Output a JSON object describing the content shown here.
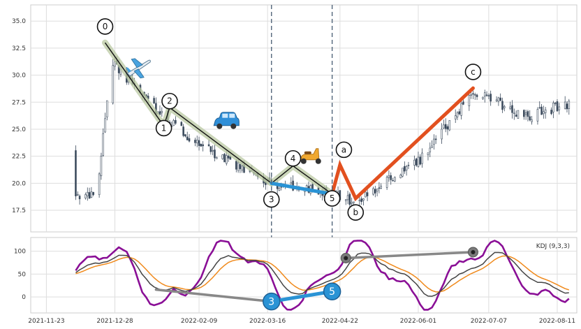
{
  "chart_data": [
    {
      "type": "candlestick",
      "panel": "price",
      "title": "",
      "ylim": [
        15.5,
        36.5
      ],
      "yticks": [
        17.5,
        20.0,
        22.5,
        25.0,
        27.5,
        30.0,
        32.5,
        35.0
      ],
      "ytick_labels": [
        "17.5",
        "20.0",
        "22.5",
        "25.0",
        "27.5",
        "30.0",
        "32.5",
        "35.0"
      ],
      "xlim": [
        "2021-11-15",
        "2022-08-21"
      ],
      "grid": true,
      "colors": {
        "up": "#ffffff",
        "down": "#3b4a5c",
        "wick": "#3b4a5c"
      },
      "key_points": [
        {
          "x": "2021-12-19",
          "y": 18.8
        },
        {
          "x": "2021-12-26",
          "y": 31.5
        },
        {
          "x": "2022-01-21",
          "y": 26.2
        },
        {
          "x": "2022-02-11",
          "y": 23.4
        },
        {
          "x": "2022-03-18",
          "y": 20.0
        },
        {
          "x": "2022-04-18",
          "y": 19.0
        },
        {
          "x": "2022-04-30",
          "y": 18.3
        },
        {
          "x": "2022-06-01",
          "y": 22.0
        },
        {
          "x": "2022-06-29",
          "y": 28.4
        },
        {
          "x": "2022-07-27",
          "y": 26.2
        },
        {
          "x": "2022-08-16",
          "y": 27.3
        }
      ],
      "impulse_wave": {
        "color": "#111111",
        "shade_color": "#b9c8a2",
        "points": [
          {
            "label": "0",
            "x": "2021-12-23",
            "y": 33.0
          },
          {
            "label": "1",
            "x": "2022-01-22",
            "y": 25.3
          },
          {
            "label": "2",
            "x": "2022-01-25",
            "y": 27.0
          },
          {
            "label": "3",
            "x": "2022-03-18",
            "y": 20.0
          },
          {
            "label": "4",
            "x": "2022-03-29",
            "y": 21.6
          },
          {
            "label": "5",
            "x": "2022-04-18",
            "y": 19.0
          }
        ]
      },
      "wave_3_5_segment": {
        "color": "#2a93d5",
        "points": [
          {
            "x": "2022-03-18",
            "y": 20.0
          },
          {
            "x": "2022-04-18",
            "y": 19.0
          }
        ]
      },
      "correction_wave": {
        "color": "#e2501f",
        "points": [
          {
            "label": "",
            "x": "2022-04-18",
            "y": 19.0
          },
          {
            "label": "a",
            "x": "2022-04-22",
            "y": 21.7
          },
          {
            "label": "b",
            "x": "2022-04-30",
            "y": 18.6
          },
          {
            "label": "c",
            "x": "2022-06-29",
            "y": 28.8
          }
        ]
      },
      "wave_label_positions": [
        {
          "label": "0",
          "x": "2021-12-23",
          "y": 34.5
        },
        {
          "label": "1",
          "x": "2022-01-22",
          "y": 25.1
        },
        {
          "label": "2",
          "x": "2022-01-25",
          "y": 27.6
        },
        {
          "label": "3",
          "x": "2022-03-18",
          "y": 18.5
        },
        {
          "label": "4",
          "x": "2022-03-29",
          "y": 22.3
        },
        {
          "label": "5",
          "x": "2022-04-18",
          "y": 18.6
        },
        {
          "label": "a",
          "x": "2022-04-24",
          "y": 23.1
        },
        {
          "label": "b",
          "x": "2022-04-30",
          "y": 17.3
        },
        {
          "label": "c",
          "x": "2022-06-29",
          "y": 30.3
        }
      ],
      "vertical_lines": [
        {
          "x": "2022-03-18",
          "color": "#51657a",
          "style": "dashed"
        },
        {
          "x": "2022-04-18",
          "color": "#51657a",
          "style": "dashed"
        }
      ],
      "emoji_annotations": [
        {
          "icon": "airplane-icon",
          "glyph": "✈",
          "x": "2022-01-09",
          "y": 30.7
        },
        {
          "icon": "car-icon",
          "glyph": "🚙",
          "x": "2022-02-23",
          "y": 25.6
        },
        {
          "icon": "scooter-icon",
          "glyph": "🛵",
          "x": "2022-04-07",
          "y": 22.3
        }
      ]
    },
    {
      "type": "line",
      "panel": "indicator",
      "ylim": [
        -35,
        130
      ],
      "yticks": [
        0,
        50,
        100
      ],
      "ytick_labels": [
        "0",
        "50",
        "100"
      ],
      "legend": {
        "text": "KDJ (9,3,3)",
        "position": "top-right"
      },
      "xticks": [
        "2021-11-23",
        "2021-12-28",
        "2022-02-09",
        "2022-03-16",
        "2022-04-22",
        "2022-06-01",
        "2022-07-07",
        "2022-08-11"
      ],
      "xtick_labels": [
        "2021-11-23",
        "2021-12-28",
        "2022-02-09",
        "2022-03-16",
        "2022-04-22",
        "2022-06-01",
        "2022-07-07",
        "2022-08-11"
      ],
      "grid": true,
      "series": [
        {
          "key": "K",
          "color": "#444444"
        },
        {
          "key": "D",
          "color": "#f08a1c"
        },
        {
          "key": "J",
          "color": "#8a0f96"
        }
      ],
      "divergence_lines": [
        {
          "color": "#888888",
          "points": [
            {
              "x": "2022-01-18",
              "y": 16
            },
            {
              "x": "2022-03-18",
              "y": -10
            }
          ]
        },
        {
          "color": "#888888",
          "marker_color": "#7a7a7a",
          "points": [
            {
              "x": "2022-04-25",
              "y": 85
            },
            {
              "x": "2022-06-29",
              "y": 98
            }
          ]
        },
        {
          "color": "#2a93d5",
          "points": [
            {
              "x": "2022-03-18",
              "y": -10
            },
            {
              "x": "2022-04-18",
              "y": 12
            }
          ]
        }
      ],
      "markers": [
        {
          "label": "3",
          "x": "2022-03-18",
          "y": -10,
          "color": "#2a93d5"
        },
        {
          "label": "5",
          "x": "2022-04-18",
          "y": 12,
          "color": "#2a93d5"
        }
      ]
    }
  ]
}
